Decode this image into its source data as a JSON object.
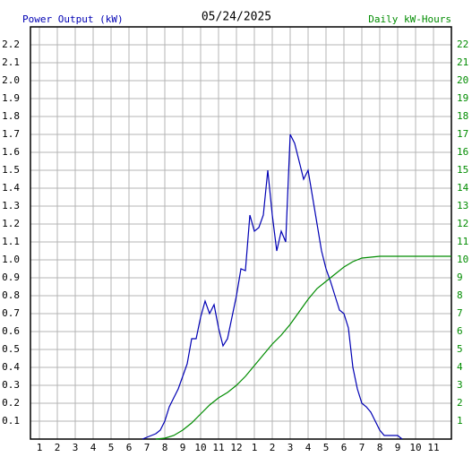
{
  "chart_data": {
    "type": "line",
    "title": "05/24/2025",
    "ylabel": "Power Output (kW)",
    "y2label": "Daily kW-Hours",
    "xlim": [
      0.5,
      24
    ],
    "xticks": [
      1,
      2,
      3,
      4,
      5,
      6,
      7,
      8,
      9,
      10,
      11,
      12,
      {
        "value": 13,
        "label": "1"
      },
      {
        "value": 14,
        "label": "2"
      },
      {
        "value": 15,
        "label": "3"
      },
      {
        "value": 16,
        "label": "4"
      },
      {
        "value": 17,
        "label": "5"
      },
      {
        "value": 18,
        "label": "6"
      },
      {
        "value": 19,
        "label": "7"
      },
      {
        "value": 20,
        "label": "8"
      },
      {
        "value": 21,
        "label": "9"
      },
      {
        "value": 22,
        "label": "10"
      },
      {
        "value": 23,
        "label": "11"
      }
    ],
    "ylim": [
      0,
      2.3
    ],
    "yticks": [
      0.1,
      0.2,
      0.3,
      0.4,
      0.5,
      0.6,
      0.7,
      0.8,
      0.9,
      {
        "value": 1,
        "label": "1.0"
      },
      1.1,
      1.2,
      1.3,
      1.4,
      1.5,
      1.6,
      1.7,
      1.8,
      1.9,
      {
        "value": 2,
        "label": "2.0"
      },
      2.1,
      2.2
    ],
    "y2lim": [
      0,
      23
    ],
    "y2ticks": [
      1,
      2,
      3,
      4,
      5,
      6,
      7,
      8,
      9,
      10,
      11,
      12,
      13,
      14,
      15,
      16,
      17,
      18,
      19,
      20,
      21,
      22
    ],
    "grid": true,
    "series": [
      {
        "color": "#0000b4",
        "x": [
          6.75,
          7,
          7.25,
          7.5,
          7.75,
          8,
          8.25,
          8.5,
          8.75,
          9,
          9.25,
          9.5,
          9.75,
          10,
          10.25,
          10.5,
          10.75,
          11,
          11.25,
          11.5,
          11.75,
          12,
          12.25,
          12.5,
          12.75,
          13,
          13.25,
          13.5,
          13.75,
          14,
          14.25,
          14.5,
          14.75,
          15,
          15.25,
          15.5,
          15.75,
          16,
          16.25,
          16.5,
          16.75,
          17,
          17.25,
          17.5,
          17.75,
          18,
          18.25,
          18.5,
          18.75,
          19,
          19.25,
          19.5,
          19.75,
          20,
          20.25,
          20.5,
          20.75,
          21,
          21.25
        ],
        "values": [
          0,
          0.01,
          0.02,
          0.03,
          0.05,
          0.1,
          0.18,
          0.23,
          0.28,
          0.35,
          0.42,
          0.56,
          0.56,
          0.68,
          0.77,
          0.7,
          0.75,
          0.62,
          0.52,
          0.56,
          0.68,
          0.8,
          0.95,
          0.94,
          1.25,
          1.16,
          1.18,
          1.25,
          1.5,
          1.25,
          1.05,
          1.16,
          1.1,
          1.7,
          1.65,
          1.55,
          1.45,
          1.5,
          1.35,
          1.2,
          1.05,
          0.95,
          0.88,
          0.8,
          0.72,
          0.7,
          0.62,
          0.4,
          0.28,
          0.2,
          0.18,
          0.15,
          0.1,
          0.05,
          0.02,
          0.02,
          0.02,
          0.02,
          0
        ]
      },
      {
        "color": "#008c00",
        "axis": "y2",
        "x": [
          7.5,
          8,
          8.5,
          9,
          9.5,
          10,
          10.5,
          11,
          11.5,
          12,
          12.5,
          13,
          13.5,
          14,
          14.5,
          15,
          15.5,
          16,
          16.5,
          17,
          17.5,
          18,
          18.5,
          19,
          19.5,
          20,
          24
        ],
        "values": [
          0,
          0.05,
          0.2,
          0.5,
          0.9,
          1.4,
          1.9,
          2.3,
          2.6,
          3,
          3.5,
          4.1,
          4.7,
          5.3,
          5.8,
          6.4,
          7.1,
          7.8,
          8.4,
          8.8,
          9.2,
          9.6,
          9.9,
          10.1,
          10.15,
          10.2,
          10.2
        ]
      }
    ]
  }
}
